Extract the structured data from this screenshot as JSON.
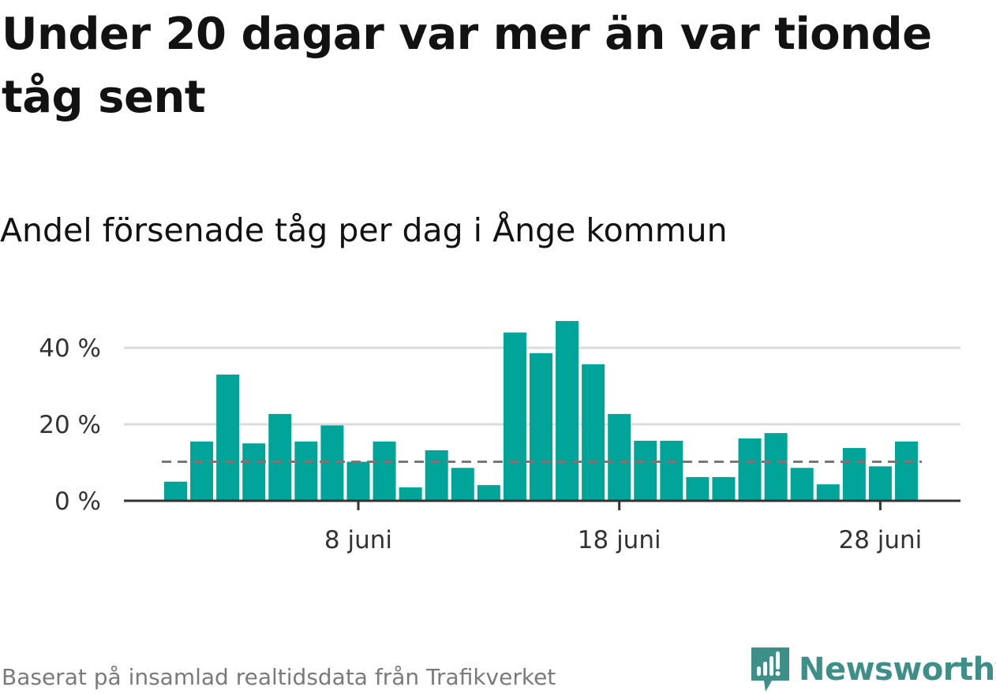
{
  "header": {
    "title": "Under 20 dagar var mer än var tionde tåg sent",
    "subtitle": "Andel försenade tåg per dag i Ånge kommun"
  },
  "footer": {
    "source": "Baserat på insamlad realtidsdata från Trafikverket",
    "brand": "Newsworthy"
  },
  "colors": {
    "bar": "#00a499",
    "baseline": "#333333",
    "grid": "#dcdcdc",
    "reference_line": "#777777",
    "brand": "#3d8f88"
  },
  "icons": {
    "brand_logo": "newsworthy-logo-icon"
  },
  "chart_data": {
    "type": "bar",
    "x": [
      "2024-06-01",
      "2024-06-02",
      "2024-06-03",
      "2024-06-04",
      "2024-06-05",
      "2024-06-06",
      "2024-06-07",
      "2024-06-08",
      "2024-06-09",
      "2024-06-10",
      "2024-06-11",
      "2024-06-12",
      "2024-06-13",
      "2024-06-14",
      "2024-06-15",
      "2024-06-16",
      "2024-06-17",
      "2024-06-18",
      "2024-06-19",
      "2024-06-20",
      "2024-06-21",
      "2024-06-22",
      "2024-06-23",
      "2024-06-24",
      "2024-06-25",
      "2024-06-26",
      "2024-06-27",
      "2024-06-28",
      "2024-06-29"
    ],
    "values": [
      5,
      15.5,
      33,
      15,
      22.7,
      15.5,
      19.7,
      10.2,
      15.5,
      3.5,
      13.2,
      8.6,
      4.1,
      44,
      38.6,
      47,
      35.7,
      22.7,
      15.7,
      15.7,
      6.2,
      6.2,
      16.3,
      17.7,
      8.6,
      4.3,
      13.8,
      9,
      15.5
    ],
    "reference_line": 10.2,
    "xticks": [
      {
        "date": "2024-06-08",
        "label": "8 juni"
      },
      {
        "date": "2024-06-18",
        "label": "18 juni"
      },
      {
        "date": "2024-06-28",
        "label": "28 juni"
      }
    ],
    "yticks": [
      {
        "value": 0,
        "label": "0 %"
      },
      {
        "value": 20,
        "label": "20 %"
      },
      {
        "value": 40,
        "label": "40 %"
      }
    ],
    "ylim": [
      0,
      50
    ],
    "grid": true,
    "xlabel": "",
    "ylabel": ""
  }
}
